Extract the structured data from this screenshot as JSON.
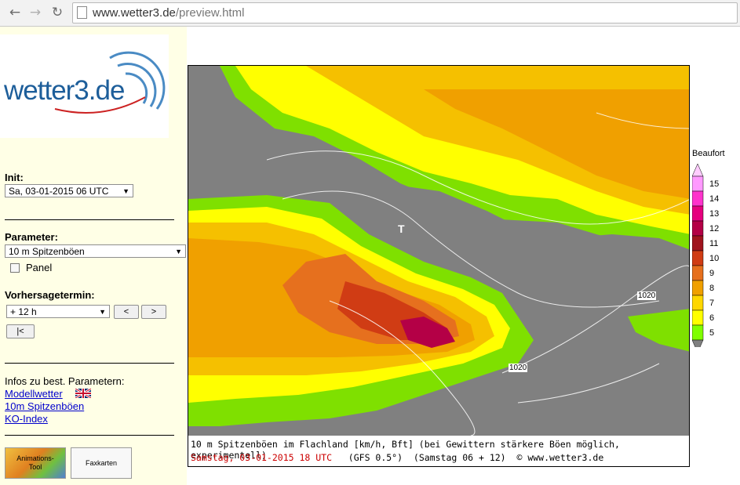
{
  "browser": {
    "url_host": "www.wetter3.de",
    "url_path": "/preview.html"
  },
  "sidebar": {
    "logo_text": "wetter3.de",
    "init_label": "Init:",
    "init_value": "Sa, 03-01-2015 06 UTC",
    "parameter_label": "Parameter:",
    "parameter_value": "10 m Spitzenböen",
    "panel_label": "Panel",
    "vorhersage_label": "Vorhersagetermin:",
    "vorhersage_value": "+ 12 h",
    "prev_btn": "<",
    "next_btn": ">",
    "first_btn": "|<",
    "infos_label": "Infos zu best. Parametern:",
    "links": [
      "Modellwetter",
      "10m Spitzenböen",
      "KO-Index"
    ],
    "thumb_animation": "Animations-\nTool",
    "thumb_fax": "Faxkarten"
  },
  "map": {
    "caption_line1": "10 m Spitzenböen im Flachland [km/h, Bft] (bei Gewittern stärkere Böen möglich, experimentell)",
    "caption_date": "Samstag, 03-01-2015   18 UTC",
    "caption_model": "(GFS 0.5°)",
    "caption_run": "(Samstag 06 + 12)",
    "caption_copyright": "© www.wetter3.de",
    "isobar_labels": [
      "1020",
      "1020"
    ],
    "low_marker": "T",
    "legend_title": "Beaufort",
    "legend_values": [
      "15",
      "14",
      "13",
      "12",
      "11",
      "10",
      "9",
      "8",
      "7",
      "6",
      "5"
    ],
    "legend_colors": [
      "#ff99ff",
      "#ff33cc",
      "#e6007e",
      "#b40046",
      "#a0141e",
      "#d03c14",
      "#e6701e",
      "#f0a000",
      "#ffd700",
      "#ffff00",
      "#80ff00"
    ]
  }
}
